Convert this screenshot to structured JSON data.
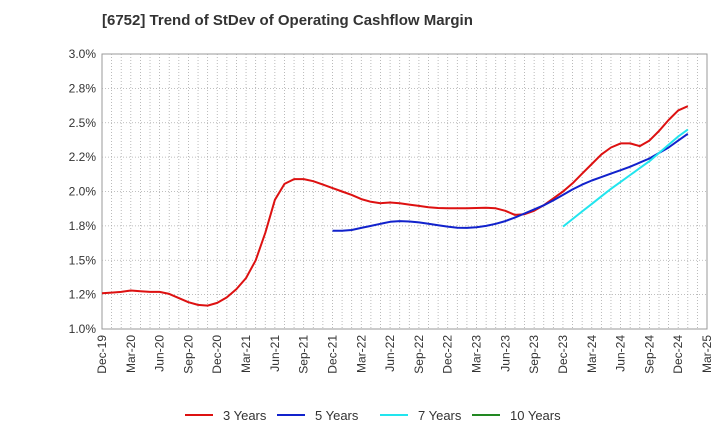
{
  "title": "[6752]  Trend of StDev of Operating Cashflow Margin",
  "chart_data": {
    "type": "line",
    "title": "[6752]  Trend of StDev of Operating Cashflow Margin",
    "xlabel": "",
    "ylabel": "",
    "x_ticks": [
      "Dec-19",
      "Mar-20",
      "Jun-20",
      "Sep-20",
      "Dec-20",
      "Mar-21",
      "Jun-21",
      "Sep-21",
      "Dec-21",
      "Mar-22",
      "Jun-22",
      "Sep-22",
      "Dec-22",
      "Mar-23",
      "Jun-23",
      "Sep-23",
      "Dec-23",
      "Mar-24",
      "Jun-24",
      "Sep-24",
      "Dec-24",
      "Mar-25"
    ],
    "y_ticks": [
      "1.0%",
      "1.2%",
      "1.5%",
      "1.8%",
      "2.0%",
      "2.2%",
      "2.5%",
      "2.8%",
      "3.0%"
    ],
    "ylim": [
      1.0,
      3.0
    ],
    "grid": true,
    "legend_position": "bottom",
    "series": [
      {
        "name": "3 Years",
        "color": "#dd1111",
        "points": [
          [
            "Dec-19",
            1.26
          ],
          [
            "Jan-20",
            1.265
          ],
          [
            "Feb-20",
            1.27
          ],
          [
            "Mar-20",
            1.28
          ],
          [
            "Apr-20",
            1.275
          ],
          [
            "May-20",
            1.27
          ],
          [
            "Jun-20",
            1.27
          ],
          [
            "Jul-20",
            1.255
          ],
          [
            "Aug-20",
            1.225
          ],
          [
            "Sep-20",
            1.195
          ],
          [
            "Oct-20",
            1.175
          ],
          [
            "Nov-20",
            1.17
          ],
          [
            "Dec-20",
            1.19
          ],
          [
            "Jan-21",
            1.23
          ],
          [
            "Feb-21",
            1.29
          ],
          [
            "Mar-21",
            1.37
          ],
          [
            "Apr-21",
            1.5
          ],
          [
            "May-21",
            1.7
          ],
          [
            "Jun-21",
            1.94
          ],
          [
            "Jul-21",
            2.055
          ],
          [
            "Aug-21",
            2.09
          ],
          [
            "Sep-21",
            2.09
          ],
          [
            "Oct-21",
            2.075
          ],
          [
            "Nov-21",
            2.05
          ],
          [
            "Dec-21",
            2.025
          ],
          [
            "Jan-22",
            2.0
          ],
          [
            "Feb-22",
            1.975
          ],
          [
            "Mar-22",
            1.945
          ],
          [
            "Apr-22",
            1.925
          ],
          [
            "May-22",
            1.915
          ],
          [
            "Jun-22",
            1.92
          ],
          [
            "Jul-22",
            1.915
          ],
          [
            "Aug-22",
            1.905
          ],
          [
            "Sep-22",
            1.895
          ],
          [
            "Oct-22",
            1.885
          ],
          [
            "Nov-22",
            1.88
          ],
          [
            "Dec-22",
            1.878
          ],
          [
            "Jan-23",
            1.878
          ],
          [
            "Feb-23",
            1.878
          ],
          [
            "Mar-23",
            1.88
          ],
          [
            "Apr-23",
            1.882
          ],
          [
            "May-23",
            1.878
          ],
          [
            "Jun-23",
            1.86
          ],
          [
            "Jul-23",
            1.83
          ],
          [
            "Aug-23",
            1.835
          ],
          [
            "Sep-23",
            1.86
          ],
          [
            "Oct-23",
            1.9
          ],
          [
            "Nov-23",
            1.95
          ],
          [
            "Dec-23",
            2.0
          ],
          [
            "Jan-24",
            2.06
          ],
          [
            "Feb-24",
            2.13
          ],
          [
            "Mar-24",
            2.2
          ],
          [
            "Apr-24",
            2.27
          ],
          [
            "May-24",
            2.32
          ],
          [
            "Jun-24",
            2.35
          ],
          [
            "Jul-24",
            2.35
          ],
          [
            "Aug-24",
            2.33
          ],
          [
            "Sep-24",
            2.37
          ],
          [
            "Oct-24",
            2.44
          ],
          [
            "Nov-24",
            2.52
          ],
          [
            "Dec-24",
            2.59
          ],
          [
            "Jan-25",
            2.62
          ]
        ]
      },
      {
        "name": "5 Years",
        "color": "#1122cc",
        "points": [
          [
            "Dec-21",
            1.715
          ],
          [
            "Jan-22",
            1.715
          ],
          [
            "Feb-22",
            1.72
          ],
          [
            "Mar-22",
            1.735
          ],
          [
            "Apr-22",
            1.75
          ],
          [
            "May-22",
            1.765
          ],
          [
            "Jun-22",
            1.78
          ],
          [
            "Jul-22",
            1.785
          ],
          [
            "Aug-22",
            1.782
          ],
          [
            "Sep-22",
            1.775
          ],
          [
            "Oct-22",
            1.765
          ],
          [
            "Nov-22",
            1.755
          ],
          [
            "Dec-22",
            1.745
          ],
          [
            "Jan-23",
            1.737
          ],
          [
            "Feb-23",
            1.735
          ],
          [
            "Mar-23",
            1.74
          ],
          [
            "Apr-23",
            1.75
          ],
          [
            "May-23",
            1.765
          ],
          [
            "Jun-23",
            1.785
          ],
          [
            "Jul-23",
            1.81
          ],
          [
            "Aug-23",
            1.84
          ],
          [
            "Sep-23",
            1.87
          ],
          [
            "Oct-23",
            1.9
          ],
          [
            "Nov-23",
            1.935
          ],
          [
            "Dec-23",
            1.975
          ],
          [
            "Jan-24",
            2.015
          ],
          [
            "Feb-24",
            2.05
          ],
          [
            "Mar-24",
            2.08
          ],
          [
            "Apr-24",
            2.105
          ],
          [
            "May-24",
            2.13
          ],
          [
            "Jun-24",
            2.155
          ],
          [
            "Jul-24",
            2.18
          ],
          [
            "Aug-24",
            2.21
          ],
          [
            "Sep-24",
            2.24
          ],
          [
            "Oct-24",
            2.28
          ],
          [
            "Nov-24",
            2.32
          ],
          [
            "Dec-24",
            2.37
          ],
          [
            "Jan-25",
            2.42
          ]
        ]
      },
      {
        "name": "7 Years",
        "color": "#22e5ee",
        "points": [
          [
            "Dec-23",
            1.745
          ],
          [
            "Jan-24",
            1.8
          ],
          [
            "Feb-24",
            1.855
          ],
          [
            "Mar-24",
            1.91
          ],
          [
            "Apr-24",
            1.965
          ],
          [
            "May-24",
            2.02
          ],
          [
            "Jun-24",
            2.07
          ],
          [
            "Jul-24",
            2.12
          ],
          [
            "Aug-24",
            2.17
          ],
          [
            "Sep-24",
            2.22
          ],
          [
            "Oct-24",
            2.28
          ],
          [
            "Nov-24",
            2.34
          ],
          [
            "Dec-24",
            2.4
          ],
          [
            "Jan-25",
            2.45
          ]
        ]
      },
      {
        "name": "10 Years",
        "color": "#228822",
        "points": []
      }
    ]
  }
}
